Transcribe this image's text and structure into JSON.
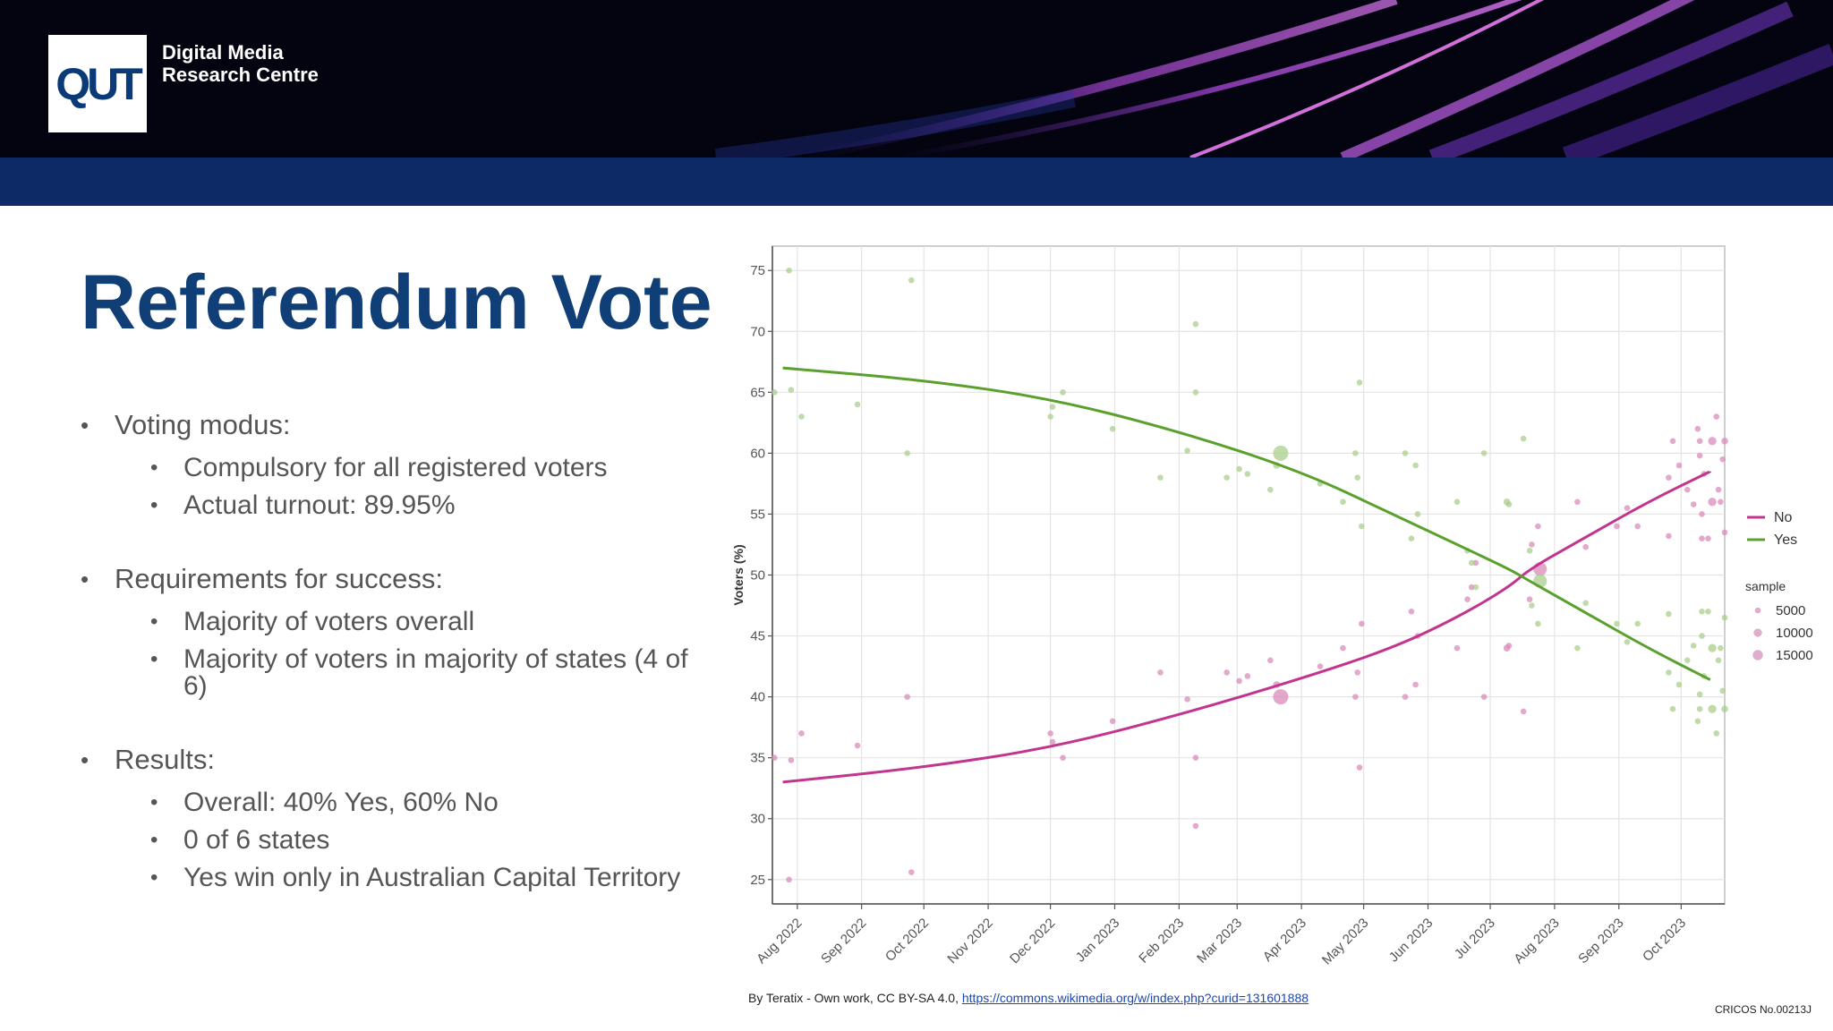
{
  "header": {
    "logo_text": "QUT",
    "org_line1": "Digital Media",
    "org_line2": "Research Centre"
  },
  "slide": {
    "title": "Referendum Vote",
    "bullets": [
      {
        "text": "Voting modus:",
        "subs": [
          "Compulsory for all registered voters",
          "Actual turnout: 89.95%"
        ]
      },
      {
        "text": "Requirements for success:",
        "subs": [
          "Majority of voters overall",
          "Majority of voters in majority of states (4 of 6)"
        ]
      },
      {
        "text": "Results:",
        "subs": [
          "Overall: 40% Yes, 60% No",
          "0 of 6 states",
          "Yes win only in Australian Capital Territory"
        ]
      }
    ]
  },
  "chart_data": {
    "type": "scatter",
    "ylabel": "Voters (%)",
    "xlabel": "",
    "x_ticks": [
      "Aug 2022",
      "Sep 2022",
      "Oct 2022",
      "Nov 2022",
      "Dec 2022",
      "Jan 2023",
      "Feb 2023",
      "Mar 2023",
      "Apr 2023",
      "May 2023",
      "Jun 2023",
      "Jul 2023",
      "Aug 2023",
      "Sep 2023",
      "Oct 2023"
    ],
    "y_ticks": [
      25,
      30,
      35,
      40,
      45,
      50,
      55,
      60,
      65,
      70,
      75
    ],
    "xlim": [
      "2022-07-20",
      "2023-10-22"
    ],
    "ylim": [
      23,
      77
    ],
    "grid": true,
    "legend_position": "right",
    "size_legend_title": "sample",
    "size_legend": [
      5000,
      10000,
      15000
    ],
    "series": [
      {
        "name": "No",
        "color": "#c2348f",
        "point_color": "#d98bbb",
        "trend": [
          [
            "2022-07-25",
            33.0
          ],
          [
            "2022-10-01",
            34.2
          ],
          [
            "2022-12-01",
            35.8
          ],
          [
            "2023-02-01",
            38.5
          ],
          [
            "2023-04-01",
            41.5
          ],
          [
            "2023-05-15",
            44.0
          ],
          [
            "2023-06-15",
            46.5
          ],
          [
            "2023-07-10",
            49.0
          ],
          [
            "2023-07-20",
            50.5
          ],
          [
            "2023-08-15",
            53.0
          ],
          [
            "2023-09-15",
            56.0
          ],
          [
            "2023-10-15",
            58.5
          ]
        ],
        "points": [
          [
            "2022-07-21",
            35,
            1500
          ],
          [
            "2022-07-28",
            25,
            1500
          ],
          [
            "2022-07-29",
            34.8,
            1500
          ],
          [
            "2022-08-03",
            37,
            1500
          ],
          [
            "2022-08-30",
            36,
            1500
          ],
          [
            "2022-09-23",
            40,
            1500
          ],
          [
            "2022-09-25",
            25.6,
            1500
          ],
          [
            "2022-12-01",
            37,
            1500
          ],
          [
            "2022-12-02",
            36.3,
            1500
          ],
          [
            "2022-12-07",
            35,
            1500
          ],
          [
            "2022-12-31",
            38,
            1500
          ],
          [
            "2023-01-23",
            42,
            1500
          ],
          [
            "2023-02-05",
            39.8,
            1500
          ],
          [
            "2023-02-09",
            35,
            1500
          ],
          [
            "2023-02-09",
            29.4,
            1500
          ],
          [
            "2023-02-24",
            42,
            1500
          ],
          [
            "2023-03-02",
            41.3,
            1500
          ],
          [
            "2023-03-06",
            41.7,
            1500
          ],
          [
            "2023-03-17",
            43,
            1500
          ],
          [
            "2023-03-20",
            41,
            2000
          ],
          [
            "2023-03-22",
            40,
            10000
          ],
          [
            "2023-04-10",
            42.5,
            1500
          ],
          [
            "2023-04-21",
            44,
            1500
          ],
          [
            "2023-04-27",
            40,
            1500
          ],
          [
            "2023-04-28",
            42,
            1500
          ],
          [
            "2023-04-29",
            34.2,
            1500
          ],
          [
            "2023-04-30",
            46,
            1500
          ],
          [
            "2023-05-21",
            40,
            1500
          ],
          [
            "2023-05-24",
            47,
            1500
          ],
          [
            "2023-05-26",
            41,
            1500
          ],
          [
            "2023-05-27",
            45,
            1500
          ],
          [
            "2023-06-15",
            44,
            1500
          ],
          [
            "2023-06-20",
            48,
            1500
          ],
          [
            "2023-06-22",
            49,
            1500
          ],
          [
            "2023-06-24",
            51,
            1500
          ],
          [
            "2023-06-28",
            40,
            1500
          ],
          [
            "2023-07-09",
            44,
            2000
          ],
          [
            "2023-07-10",
            44.2,
            1500
          ],
          [
            "2023-07-17",
            38.8,
            1500
          ],
          [
            "2023-07-20",
            48,
            1500
          ],
          [
            "2023-07-21",
            52.5,
            1500
          ],
          [
            "2023-07-24",
            54,
            1500
          ],
          [
            "2023-07-25",
            50.5,
            8000
          ],
          [
            "2023-08-12",
            56,
            1500
          ],
          [
            "2023-08-16",
            52.3,
            1500
          ],
          [
            "2023-08-31",
            54,
            1500
          ],
          [
            "2023-09-05",
            55.5,
            1500
          ],
          [
            "2023-09-10",
            54,
            1500
          ],
          [
            "2023-09-25",
            53.2,
            1500
          ],
          [
            "2023-09-25",
            58,
            1500
          ],
          [
            "2023-09-27",
            61,
            1500
          ],
          [
            "2023-09-30",
            59,
            1500
          ],
          [
            "2023-10-04",
            57,
            1500
          ],
          [
            "2023-10-07",
            55.8,
            1500
          ],
          [
            "2023-10-09",
            62,
            1500
          ],
          [
            "2023-10-10",
            61,
            1500
          ],
          [
            "2023-10-10",
            59.8,
            1500
          ],
          [
            "2023-10-11",
            55,
            1500
          ],
          [
            "2023-10-11",
            53,
            1500
          ],
          [
            "2023-10-12",
            58.3,
            1500
          ],
          [
            "2023-10-14",
            53,
            1500
          ],
          [
            "2023-10-16",
            61,
            3000
          ],
          [
            "2023-10-16",
            56,
            3000
          ],
          [
            "2023-10-18",
            63,
            1500
          ],
          [
            "2023-10-19",
            57,
            1500
          ],
          [
            "2023-10-20",
            56,
            1500
          ],
          [
            "2023-10-21",
            59.5,
            1500
          ],
          [
            "2023-10-22",
            61,
            2000
          ],
          [
            "2023-10-22",
            53.5,
            1500
          ]
        ]
      },
      {
        "name": "Yes",
        "color": "#5aa02c",
        "point_color": "#a9cf8c",
        "trend": [
          [
            "2022-07-25",
            67.0
          ],
          [
            "2022-10-01",
            66.0
          ],
          [
            "2022-12-01",
            64.5
          ],
          [
            "2023-02-01",
            61.8
          ],
          [
            "2023-04-01",
            58.5
          ],
          [
            "2023-05-15",
            55.0
          ],
          [
            "2023-06-15",
            52.5
          ],
          [
            "2023-07-10",
            50.5
          ],
          [
            "2023-07-20",
            49.5
          ],
          [
            "2023-08-15",
            47.0
          ],
          [
            "2023-09-15",
            44.0
          ],
          [
            "2023-10-15",
            41.4
          ]
        ],
        "points": [
          [
            "2022-07-21",
            65,
            1500
          ],
          [
            "2022-07-28",
            75,
            1500
          ],
          [
            "2022-07-29",
            65.2,
            1500
          ],
          [
            "2022-08-03",
            63,
            1500
          ],
          [
            "2022-08-30",
            64,
            1500
          ],
          [
            "2022-09-23",
            60,
            1500
          ],
          [
            "2022-09-25",
            74.2,
            1500
          ],
          [
            "2022-12-01",
            63,
            1500
          ],
          [
            "2022-12-02",
            63.8,
            1500
          ],
          [
            "2022-12-07",
            65,
            1500
          ],
          [
            "2022-12-31",
            62,
            1500
          ],
          [
            "2023-01-23",
            58,
            1500
          ],
          [
            "2023-02-05",
            60.2,
            1500
          ],
          [
            "2023-02-09",
            65,
            1500
          ],
          [
            "2023-02-09",
            70.6,
            1500
          ],
          [
            "2023-02-24",
            58,
            1500
          ],
          [
            "2023-03-02",
            58.7,
            1500
          ],
          [
            "2023-03-06",
            58.3,
            1500
          ],
          [
            "2023-03-17",
            57,
            1500
          ],
          [
            "2023-03-20",
            59,
            2000
          ],
          [
            "2023-03-22",
            60,
            10000
          ],
          [
            "2023-04-10",
            57.5,
            1500
          ],
          [
            "2023-04-21",
            56,
            1500
          ],
          [
            "2023-04-27",
            60,
            1500
          ],
          [
            "2023-04-28",
            58,
            1500
          ],
          [
            "2023-04-29",
            65.8,
            1500
          ],
          [
            "2023-04-30",
            54,
            1500
          ],
          [
            "2023-05-21",
            60,
            1500
          ],
          [
            "2023-05-24",
            53,
            1500
          ],
          [
            "2023-05-26",
            59,
            1500
          ],
          [
            "2023-05-27",
            55,
            1500
          ],
          [
            "2023-06-15",
            56,
            1500
          ],
          [
            "2023-06-20",
            52,
            1500
          ],
          [
            "2023-06-22",
            51,
            1500
          ],
          [
            "2023-06-24",
            49,
            1500
          ],
          [
            "2023-06-28",
            60,
            1500
          ],
          [
            "2023-07-09",
            56,
            2000
          ],
          [
            "2023-07-10",
            55.8,
            1500
          ],
          [
            "2023-07-17",
            61.2,
            1500
          ],
          [
            "2023-07-20",
            52,
            1500
          ],
          [
            "2023-07-21",
            47.5,
            1500
          ],
          [
            "2023-07-24",
            46,
            1500
          ],
          [
            "2023-07-25",
            49.5,
            8000
          ],
          [
            "2023-08-12",
            44,
            1500
          ],
          [
            "2023-08-16",
            47.7,
            1500
          ],
          [
            "2023-08-31",
            46,
            1500
          ],
          [
            "2023-09-05",
            44.5,
            1500
          ],
          [
            "2023-09-10",
            46,
            1500
          ],
          [
            "2023-09-25",
            46.8,
            1500
          ],
          [
            "2023-09-25",
            42,
            1500
          ],
          [
            "2023-09-27",
            39,
            1500
          ],
          [
            "2023-09-30",
            41,
            1500
          ],
          [
            "2023-10-04",
            43,
            1500
          ],
          [
            "2023-10-07",
            44.2,
            1500
          ],
          [
            "2023-10-09",
            38,
            1500
          ],
          [
            "2023-10-10",
            39,
            1500
          ],
          [
            "2023-10-10",
            40.2,
            1500
          ],
          [
            "2023-10-11",
            45,
            1500
          ],
          [
            "2023-10-11",
            47,
            1500
          ],
          [
            "2023-10-12",
            41.7,
            1500
          ],
          [
            "2023-10-14",
            47,
            1500
          ],
          [
            "2023-10-16",
            39,
            3000
          ],
          [
            "2023-10-16",
            44,
            3000
          ],
          [
            "2023-10-18",
            37,
            1500
          ],
          [
            "2023-10-19",
            43,
            1500
          ],
          [
            "2023-10-20",
            44,
            1500
          ],
          [
            "2023-10-21",
            40.5,
            1500
          ],
          [
            "2023-10-22",
            39,
            2000
          ],
          [
            "2023-10-22",
            46.5,
            1500
          ]
        ]
      }
    ]
  },
  "attribution": {
    "text": "By Teratix - Own work, CC BY-SA 4.0,",
    "link": "https://commons.wikimedia.org/w/index.php?curid=131601888"
  },
  "footer": {
    "cricos": "CRICOS No.00213J"
  }
}
